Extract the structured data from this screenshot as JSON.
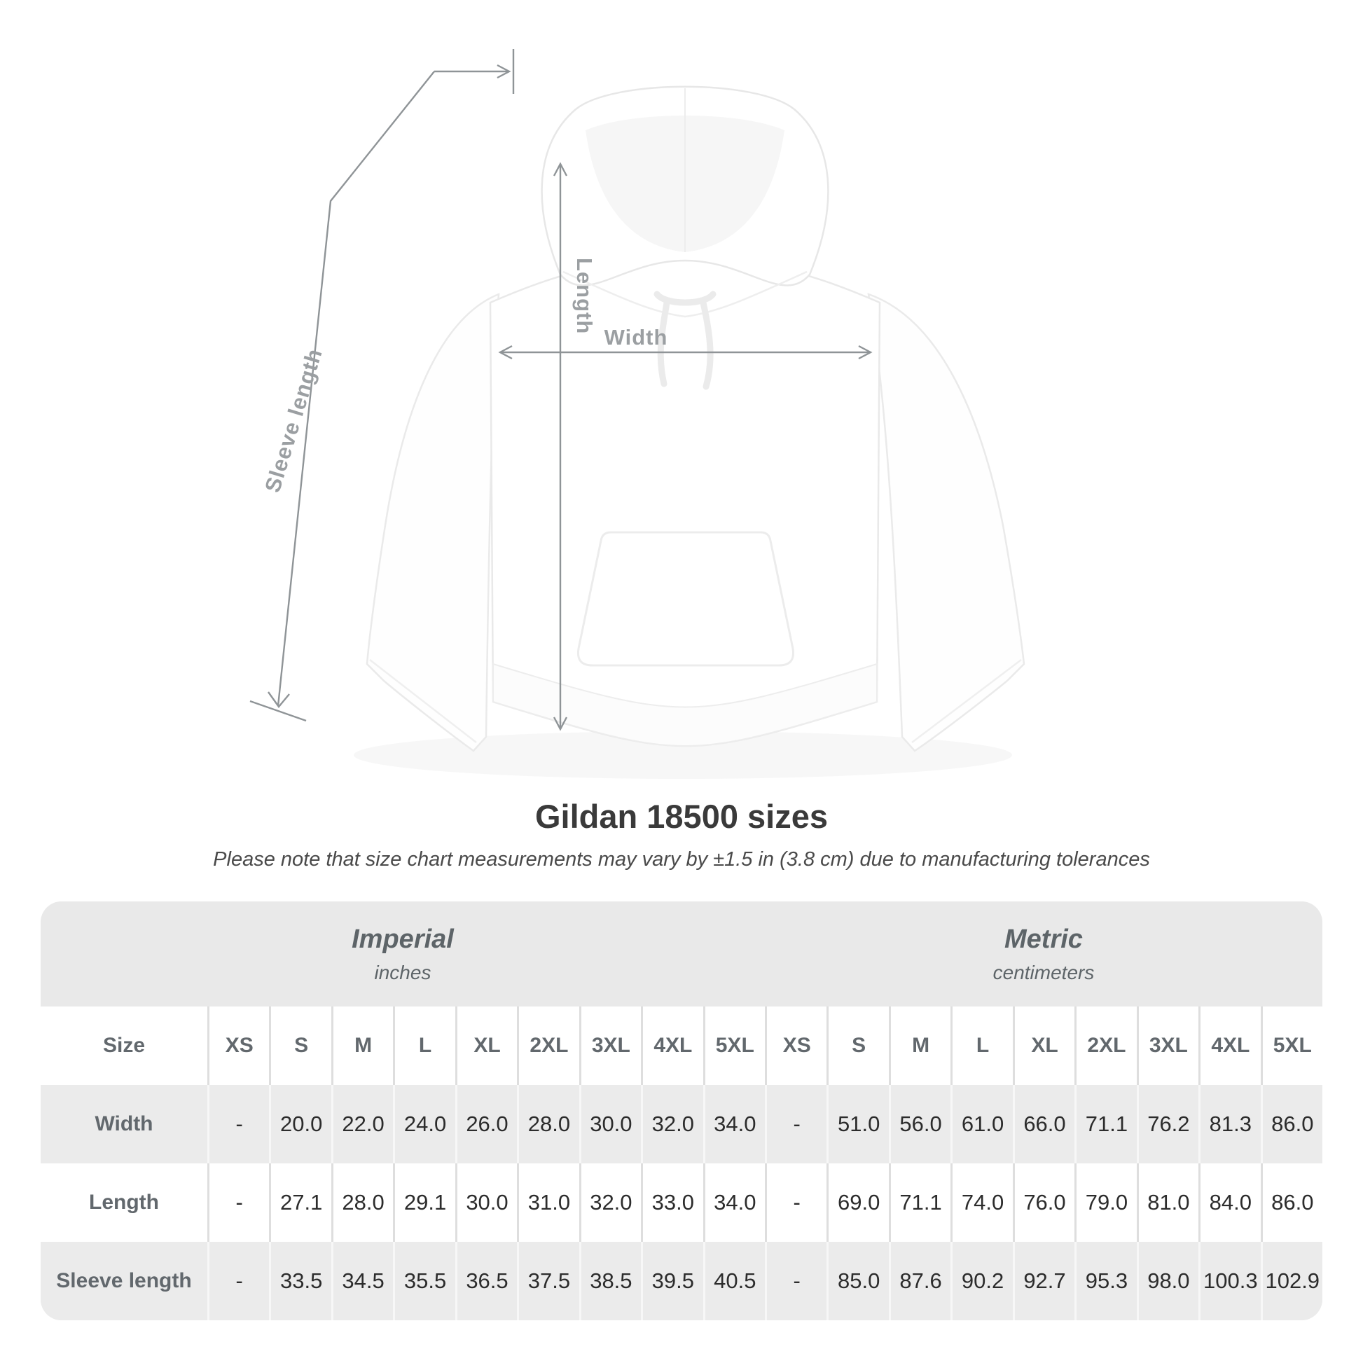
{
  "diagram": {
    "labels": {
      "sleeve_length": "Sleeve length",
      "length": "Length",
      "width": "Width"
    }
  },
  "title": "Gildan 18500 sizes",
  "subtitle": "Please note that size chart measurements may vary by ±1.5 in (3.8 cm) due to manufacturing tolerances",
  "table": {
    "unit_groups": [
      {
        "name": "Imperial",
        "unit": "inches"
      },
      {
        "name": "Metric",
        "unit": "centimeters"
      }
    ],
    "size_header": "Size",
    "sizes": [
      "XS",
      "S",
      "M",
      "L",
      "XL",
      "2XL",
      "3XL",
      "4XL",
      "5XL"
    ],
    "rows": [
      {
        "label": "Width",
        "imperial": [
          "-",
          "20.0",
          "22.0",
          "24.0",
          "26.0",
          "28.0",
          "30.0",
          "32.0",
          "34.0"
        ],
        "metric": [
          "-",
          "51.0",
          "56.0",
          "61.0",
          "66.0",
          "71.1",
          "76.2",
          "81.3",
          "86.0"
        ]
      },
      {
        "label": "Length",
        "imperial": [
          "-",
          "27.1",
          "28.0",
          "29.1",
          "30.0",
          "31.0",
          "32.0",
          "33.0",
          "34.0"
        ],
        "metric": [
          "-",
          "69.0",
          "71.1",
          "74.0",
          "76.0",
          "79.0",
          "81.0",
          "84.0",
          "86.0"
        ]
      },
      {
        "label": "Sleeve length",
        "imperial": [
          "-",
          "33.5",
          "34.5",
          "35.5",
          "36.5",
          "37.5",
          "38.5",
          "39.5",
          "40.5"
        ],
        "metric": [
          "-",
          "85.0",
          "87.6",
          "90.2",
          "92.7",
          "95.3",
          "98.0",
          "100.3",
          "102.9"
        ]
      }
    ]
  },
  "chart_data": {
    "type": "table",
    "title": "Gildan 18500 sizes",
    "note": "Please note that size chart measurements may vary by ±1.5 in (3.8 cm) due to manufacturing tolerances",
    "columns": [
      "XS",
      "S",
      "M",
      "L",
      "XL",
      "2XL",
      "3XL",
      "4XL",
      "5XL"
    ],
    "series": [
      {
        "name": "Width (inches)",
        "values": [
          null,
          20.0,
          22.0,
          24.0,
          26.0,
          28.0,
          30.0,
          32.0,
          34.0
        ]
      },
      {
        "name": "Length (inches)",
        "values": [
          null,
          27.1,
          28.0,
          29.1,
          30.0,
          31.0,
          32.0,
          33.0,
          34.0
        ]
      },
      {
        "name": "Sleeve length (inches)",
        "values": [
          null,
          33.5,
          34.5,
          35.5,
          36.5,
          37.5,
          38.5,
          39.5,
          40.5
        ]
      },
      {
        "name": "Width (cm)",
        "values": [
          null,
          51.0,
          56.0,
          61.0,
          66.0,
          71.1,
          76.2,
          81.3,
          86.0
        ]
      },
      {
        "name": "Length (cm)",
        "values": [
          null,
          69.0,
          71.1,
          74.0,
          76.0,
          79.0,
          81.0,
          84.0,
          86.0
        ]
      },
      {
        "name": "Sleeve length (cm)",
        "values": [
          null,
          85.0,
          87.6,
          90.2,
          92.7,
          95.3,
          98.0,
          100.3,
          102.9
        ]
      }
    ]
  },
  "colors": {
    "annotation_gray": "#8f9497",
    "label_gray": "#62686d",
    "value_dark": "#2c2c2c",
    "row_gray": "#ebebeb",
    "header_gray": "#e9e9e9",
    "page_bg": "#ffffff"
  }
}
